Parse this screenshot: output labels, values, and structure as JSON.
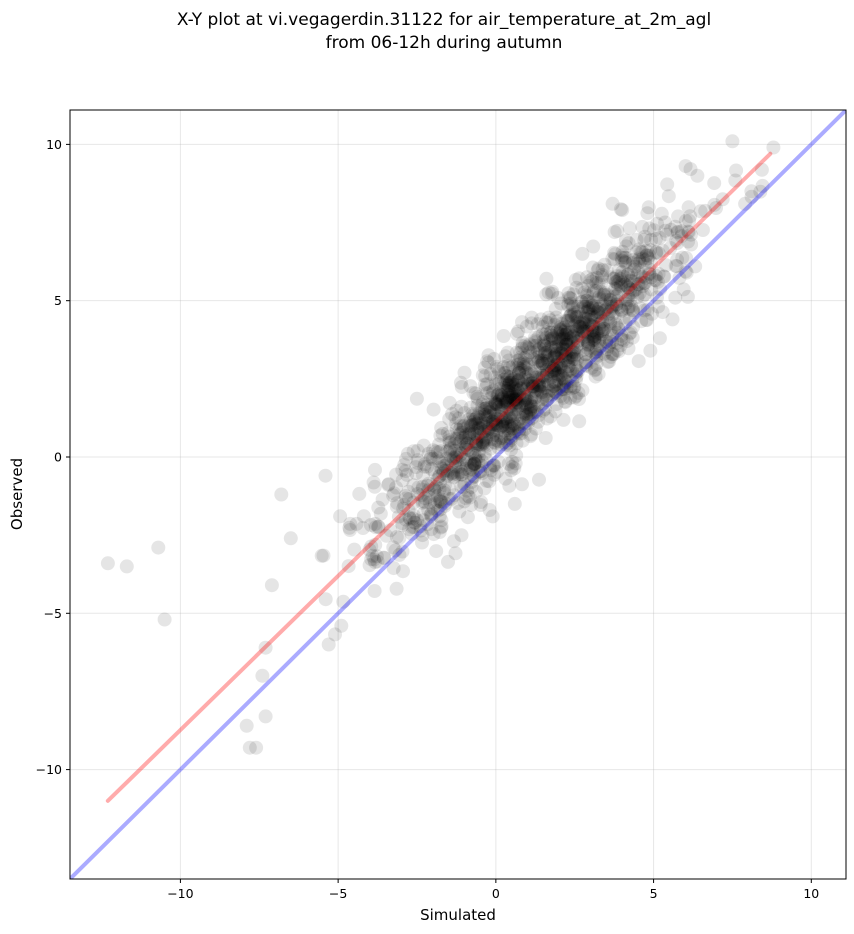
{
  "chart_data": {
    "type": "scatter",
    "title_lines": [
      "X-Y plot at vi.vegagerdin.31122 for air_temperature_at_2m_agl",
      "from 06-12h during autumn"
    ],
    "xlabel": "Simulated",
    "ylabel": "Observed",
    "xlim": [
      -13.5,
      11.1
    ],
    "ylim": [
      -13.5,
      11.1
    ],
    "xticks": [
      -10,
      -5,
      0,
      5,
      10
    ],
    "yticks": [
      -10,
      -5,
      0,
      5,
      10
    ],
    "grid": true,
    "point_color": "#000000",
    "point_opacity": 0.1,
    "outlier_points": [
      {
        "x": -12.3,
        "y": -3.4
      },
      {
        "x": -11.7,
        "y": -3.5
      },
      {
        "x": -10.7,
        "y": -2.9
      },
      {
        "x": -10.5,
        "y": -5.2
      },
      {
        "x": -6.8,
        "y": -1.2
      },
      {
        "x": -5.4,
        "y": -0.6
      },
      {
        "x": -5.3,
        "y": -6.0
      },
      {
        "x": -4.9,
        "y": -5.4
      },
      {
        "x": -7.8,
        "y": -9.3
      },
      {
        "x": -7.6,
        "y": -9.3
      },
      {
        "x": -7.9,
        "y": -8.6
      },
      {
        "x": -7.3,
        "y": -8.3
      },
      {
        "x": -7.4,
        "y": -7.0
      },
      {
        "x": -7.3,
        "y": -6.1
      },
      {
        "x": -7.1,
        "y": -4.1
      },
      {
        "x": -6.5,
        "y": -2.6
      },
      {
        "x": 1.6,
        "y": 5.2
      },
      {
        "x": 3.7,
        "y": 8.1
      },
      {
        "x": 7.5,
        "y": 10.1
      },
      {
        "x": 8.8,
        "y": 9.9
      },
      {
        "x": 8.1,
        "y": 8.5
      },
      {
        "x": 5.6,
        "y": 4.4
      },
      {
        "x": 5.2,
        "y": 3.8
      },
      {
        "x": 4.9,
        "y": 3.4
      },
      {
        "x": 0.6,
        "y": -1.5
      },
      {
        "x": -0.1,
        "y": -1.9
      }
    ],
    "cluster": {
      "count": 1500,
      "x_range": [
        -7.5,
        8.5
      ],
      "x_mean": 1.2,
      "x_sd": 2.4,
      "slope": 1.0,
      "intercept": 1.2,
      "residual_sd": 0.9
    },
    "lines": [
      {
        "kind": "regression",
        "color": "#ff0000",
        "opacity": 0.33,
        "x": [
          -12.3,
          8.7
        ],
        "y": [
          -11.0,
          9.7
        ]
      },
      {
        "kind": "identity",
        "color": "#0000ff",
        "opacity": 0.33,
        "x": [
          -13.5,
          11.1
        ],
        "y": [
          -13.5,
          11.1
        ]
      }
    ]
  }
}
